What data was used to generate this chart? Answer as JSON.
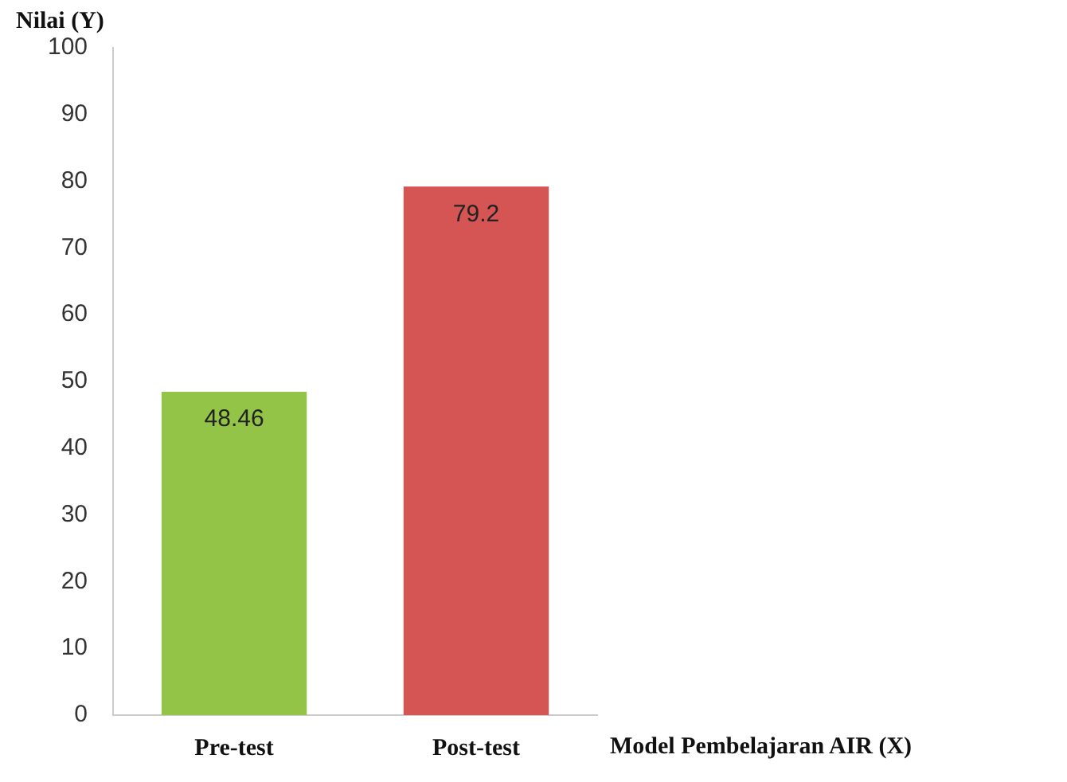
{
  "chart_data": {
    "type": "bar",
    "xlabel": "Model Pembelajaran AIR (X)",
    "ylabel": "Nilai (Y)",
    "categories": [
      "Pre-test",
      "Post-test"
    ],
    "values": [
      48.46,
      79.2
    ],
    "colors": [
      "#93c447",
      "#d55555"
    ],
    "ylim": [
      0,
      100
    ],
    "yticks": [
      0,
      10,
      20,
      30,
      40,
      50,
      60,
      70,
      80,
      90,
      100
    ],
    "grid": false,
    "legend": false,
    "data_labels": true
  }
}
